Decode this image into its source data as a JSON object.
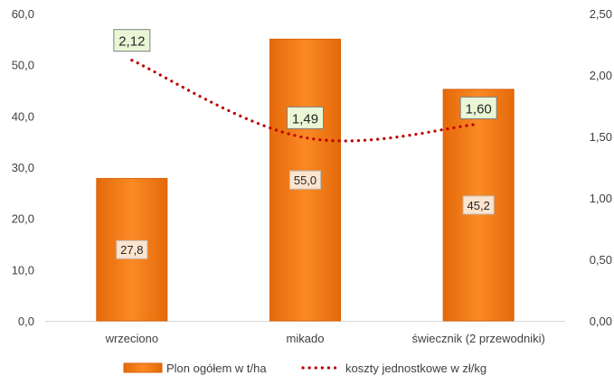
{
  "chart_data": {
    "type": "bar",
    "categories": [
      "wrzeciono",
      "mikado",
      "świecznik (2 przewodniki)"
    ],
    "series": [
      {
        "name": "Plon ogółem w t/ha",
        "type": "bar",
        "axis": "left",
        "values": [
          27.8,
          55.0,
          45.2
        ],
        "labels": [
          "27,8",
          "55,0",
          "45,2"
        ],
        "color": "#F07C14"
      },
      {
        "name": "koszty jednostkowe w zł/kg",
        "type": "line",
        "axis": "right",
        "values": [
          2.12,
          1.49,
          1.6
        ],
        "labels": [
          "2,12",
          "1,49",
          "1,60"
        ],
        "color": "#C00000"
      }
    ],
    "y_left": {
      "min": 0,
      "max": 60,
      "ticks": [
        "0,0",
        "10,0",
        "20,0",
        "30,0",
        "40,0",
        "50,0",
        "60,0"
      ]
    },
    "y_right": {
      "min": 0,
      "max": 2.5,
      "ticks": [
        "0,00",
        "0,50",
        "1,00",
        "1,50",
        "2,00",
        "2,50"
      ]
    },
    "grid": false,
    "legend_position": "bottom"
  }
}
